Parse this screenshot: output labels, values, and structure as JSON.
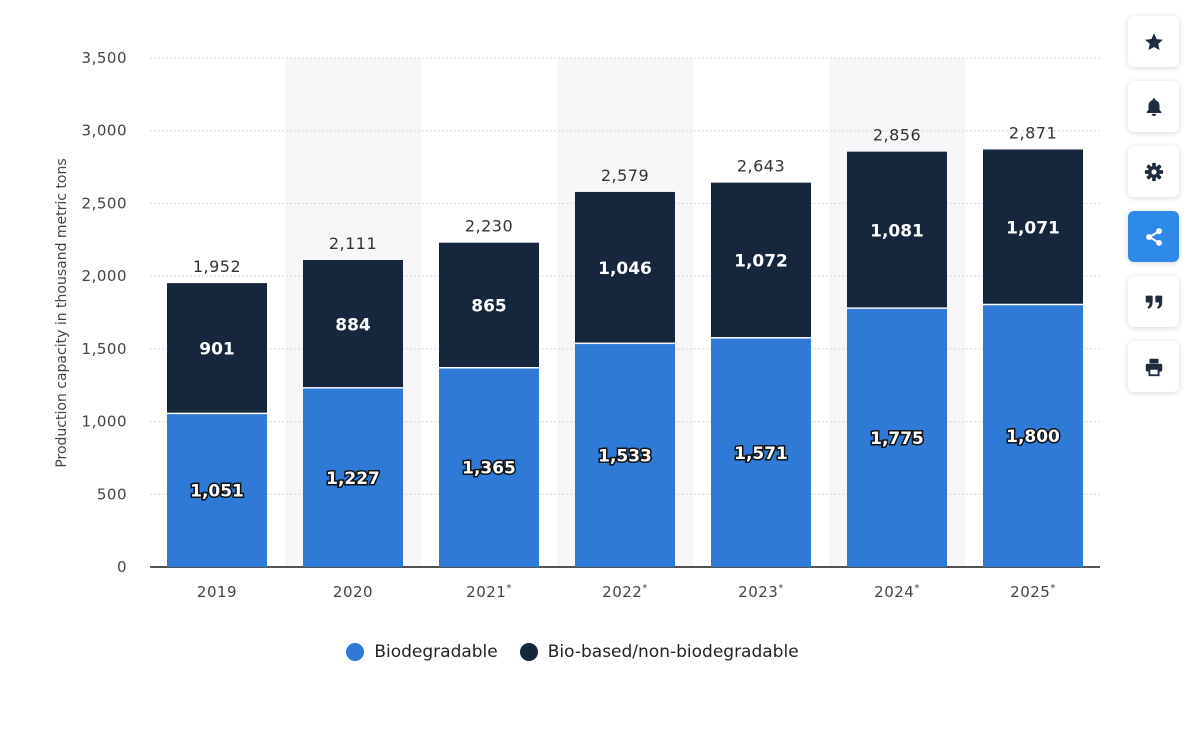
{
  "colors": {
    "biodegradable": "#2f7ad6",
    "bio_based": "#15263d",
    "share_active": "#2d8ae8",
    "icon": "#1e2c3e"
  },
  "toolbar": [
    {
      "icon": "star-icon",
      "name": "favorite-button"
    },
    {
      "icon": "bell-icon",
      "name": "notification-button"
    },
    {
      "icon": "gear-icon",
      "name": "settings-button"
    },
    {
      "icon": "share-icon",
      "name": "share-button",
      "active": true
    },
    {
      "icon": "quote-icon",
      "name": "cite-button"
    },
    {
      "icon": "print-icon",
      "name": "print-button"
    }
  ],
  "chart_data": {
    "type": "bar",
    "stacked": true,
    "title": "",
    "xlabel": "",
    "ylabel": "Production capacity in thousand metric tons",
    "ylim": [
      0,
      3500
    ],
    "yticks": [
      0,
      500,
      1000,
      1500,
      2000,
      2500,
      3000,
      3500
    ],
    "ytick_labels": [
      "0",
      "500",
      "1,000",
      "1,500",
      "2,000",
      "2,500",
      "3,000",
      "3,500"
    ],
    "grid": true,
    "categories": [
      "2019",
      "2020",
      "2021*",
      "2022*",
      "2023*",
      "2024*",
      "2025*"
    ],
    "series": [
      {
        "name": "Biodegradable",
        "values": [
          1051,
          1227,
          1365,
          1533,
          1571,
          1775,
          1800
        ],
        "labels": [
          "1,051",
          "1,227",
          "1,365",
          "1,533",
          "1,571",
          "1,775",
          "1,800"
        ]
      },
      {
        "name": "Bio-based/non-biodegradable",
        "values": [
          901,
          884,
          865,
          1046,
          1072,
          1081,
          1071
        ],
        "labels": [
          "901",
          "884",
          "865",
          "1,046",
          "1,072",
          "1,081",
          "1,071"
        ]
      }
    ],
    "totals": [
      1952,
      2111,
      2230,
      2579,
      2643,
      2856,
      2871
    ],
    "total_labels": [
      "1,952",
      "2,111",
      "2,230",
      "2,579",
      "2,643",
      "2,856",
      "2,871"
    ],
    "legend": [
      "Biodegradable",
      "Bio-based/non-biodegradable"
    ],
    "legend_position": "bottom"
  }
}
